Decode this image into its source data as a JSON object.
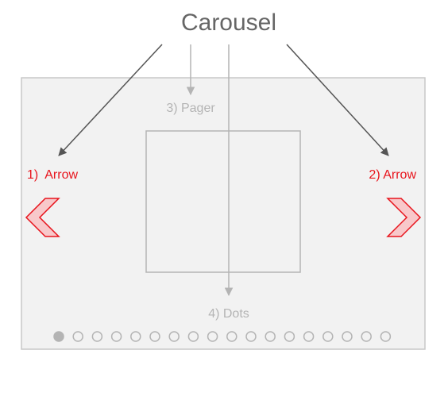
{
  "title": "Carousel",
  "labels": {
    "arrow_left": "1)  Arrow",
    "arrow_right": "2) Arrow",
    "pager": "3) Pager",
    "dots": "4) Dots"
  },
  "dots": {
    "count": 18,
    "active_index": 0
  },
  "colors": {
    "title": "#666666",
    "frame_fill": "#f2f2f2",
    "frame_stroke": "#c8c8c8",
    "arrow_red": "#e8141c",
    "arrow_fill": "#f8c8ca",
    "guide_gray": "#b4b4b4",
    "connector_dark": "#555555",
    "dot_active": "#b4b4b4",
    "dot_stroke": "#b4b4b4"
  }
}
